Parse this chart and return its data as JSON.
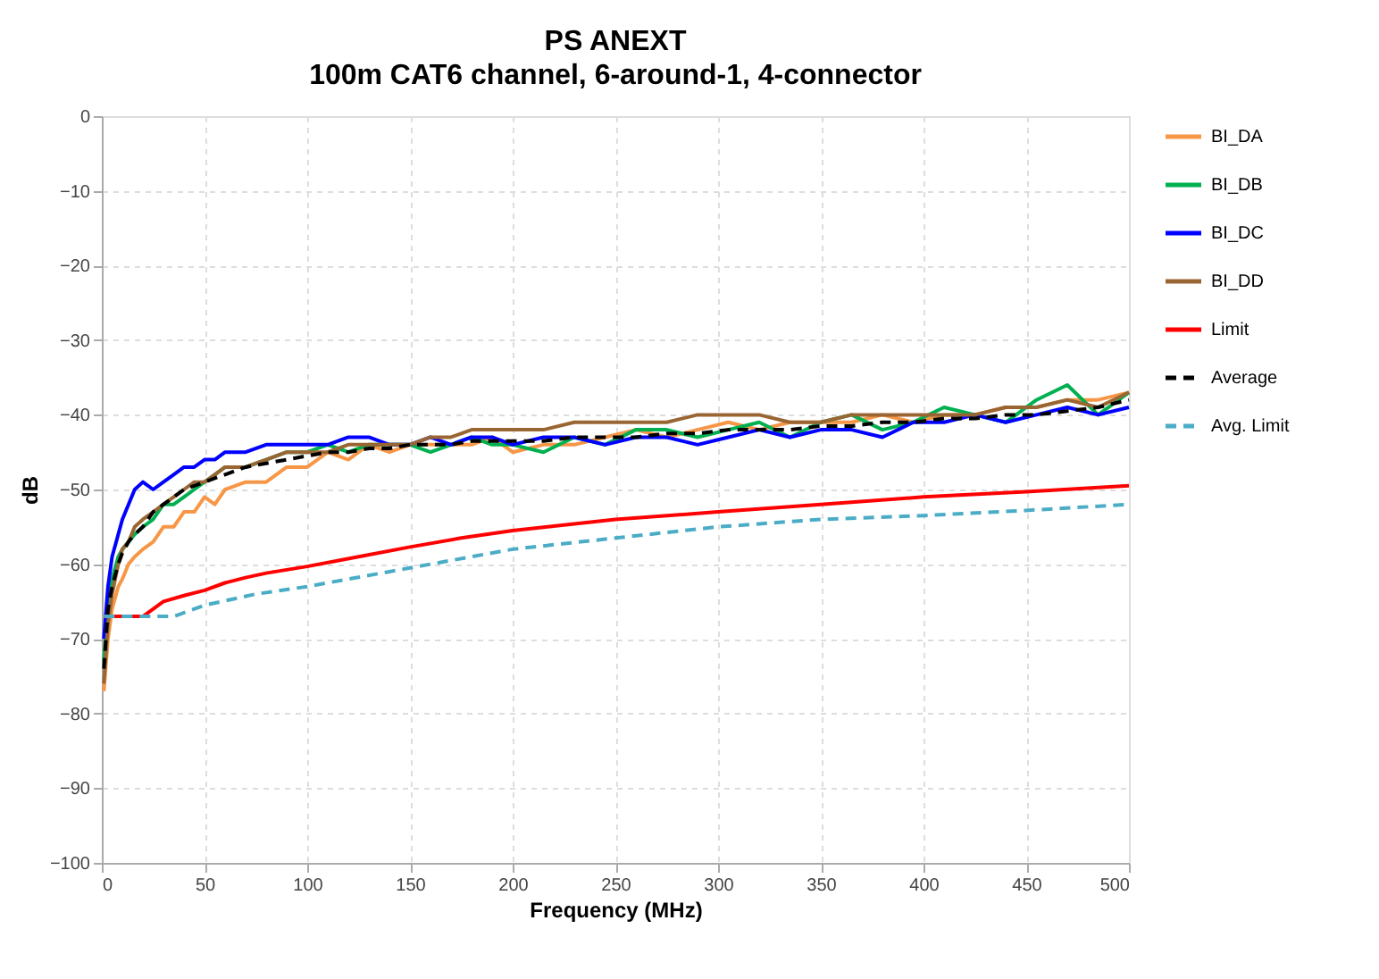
{
  "chart_data": {
    "type": "line",
    "title": "PS ANEXT",
    "subtitle": "100m CAT6 channel, 6-around-1, 4-connector",
    "xlabel": "Frequency (MHz)",
    "ylabel": "dB",
    "x": [
      1,
      3,
      5,
      8,
      10,
      13,
      16,
      20,
      25,
      30,
      35,
      40,
      45,
      50,
      55,
      60,
      70,
      80,
      90,
      100,
      110,
      120,
      130,
      140,
      150,
      160,
      170,
      180,
      190,
      200,
      215,
      230,
      245,
      260,
      275,
      290,
      305,
      320,
      335,
      350,
      365,
      380,
      395,
      410,
      425,
      440,
      455,
      470,
      485,
      500
    ],
    "series": [
      {
        "name": "BI_DA",
        "color": "#f79646",
        "line_style": "solid",
        "values": [
          -77,
          -70,
          -66,
          -63,
          -62,
          -60,
          -59,
          -58,
          -57,
          -55,
          -55,
          -53,
          -53,
          -51,
          -52,
          -50,
          -49,
          -49,
          -47,
          -47,
          -45,
          -46,
          -44,
          -45,
          -44,
          -44,
          -44,
          -44,
          -43,
          -45,
          -44,
          -44,
          -43,
          -42,
          -43,
          -42,
          -41,
          -42,
          -41,
          -41,
          -41,
          -40,
          -41,
          -40,
          -40,
          -39,
          -39,
          -38,
          -38,
          -37
        ]
      },
      {
        "name": "BI_DB",
        "color": "#00b050",
        "line_style": "solid",
        "values": [
          -73,
          -66,
          -62,
          -59,
          -58,
          -57,
          -56,
          -55,
          -54,
          -52,
          -52,
          -51,
          -50,
          -49,
          -48,
          -47,
          -47,
          -46,
          -45,
          -45,
          -44,
          -45,
          -44,
          -44,
          -44,
          -45,
          -44,
          -43,
          -44,
          -44,
          -45,
          -43,
          -44,
          -42,
          -42,
          -43,
          -42,
          -41,
          -43,
          -41,
          -40,
          -42,
          -41,
          -39,
          -40,
          -41,
          -38,
          -36,
          -40,
          -37
        ]
      },
      {
        "name": "BI_DC",
        "color": "#0000ff",
        "line_style": "solid",
        "values": [
          -70,
          -63,
          -59,
          -56,
          -54,
          -52,
          -50,
          -49,
          -50,
          -49,
          -48,
          -47,
          -47,
          -46,
          -46,
          -45,
          -45,
          -44,
          -44,
          -44,
          -44,
          -43,
          -43,
          -44,
          -44,
          -43,
          -44,
          -43,
          -43,
          -44,
          -43,
          -43,
          -44,
          -43,
          -43,
          -44,
          -43,
          -42,
          -43,
          -42,
          -42,
          -43,
          -41,
          -41,
          -40,
          -41,
          -40,
          -39,
          -40,
          -39
        ]
      },
      {
        "name": "BI_DD",
        "color": "#996633",
        "line_style": "solid",
        "values": [
          -76,
          -68,
          -64,
          -60,
          -58,
          -57,
          -55,
          -54,
          -53,
          -52,
          -51,
          -50,
          -49,
          -49,
          -48,
          -47,
          -47,
          -46,
          -45,
          -45,
          -45,
          -44,
          -44,
          -44,
          -44,
          -43,
          -43,
          -42,
          -42,
          -42,
          -42,
          -41,
          -41,
          -41,
          -41,
          -40,
          -40,
          -40,
          -41,
          -41,
          -40,
          -40,
          -40,
          -40,
          -40,
          -39,
          -39,
          -38,
          -39,
          -37
        ]
      },
      {
        "name": "Limit",
        "color": "#ff0000",
        "line_style": "solid",
        "x": [
          1,
          20,
          30,
          40,
          50,
          60,
          70,
          80,
          100,
          125,
          150,
          175,
          200,
          250,
          300,
          350,
          400,
          450,
          500
        ],
        "values": [
          -67,
          -67,
          -65,
          -64.2,
          -63.5,
          -62.5,
          -61.8,
          -61.2,
          -60.3,
          -59,
          -57.7,
          -56.5,
          -55.5,
          -54,
          -53,
          -52,
          -51,
          -50.3,
          -49.5
        ]
      },
      {
        "name": "Average",
        "color": "#000000",
        "line_style": "dashed",
        "values": [
          -74,
          -66,
          -63,
          -60,
          -58.5,
          -57,
          -56,
          -55,
          -53,
          -52,
          -51,
          -50,
          -49.5,
          -49,
          -48.5,
          -48,
          -47,
          -46.5,
          -46,
          -45.5,
          -45,
          -45,
          -44.5,
          -44.5,
          -44,
          -44,
          -44,
          -43.5,
          -43.5,
          -43.5,
          -43.5,
          -43,
          -43,
          -43,
          -42.5,
          -42.5,
          -42,
          -42,
          -42,
          -41.5,
          -41.5,
          -41,
          -41,
          -40.5,
          -40.5,
          -40,
          -40,
          -39.5,
          -39,
          -38
        ]
      },
      {
        "name": "Avg. Limit",
        "color": "#4bacc6",
        "line_style": "dashed",
        "x": [
          1,
          35,
          50,
          75,
          100,
          150,
          200,
          250,
          300,
          350,
          400,
          450,
          500
        ],
        "values": [
          -67,
          -67,
          -65.5,
          -64,
          -63,
          -60.5,
          -58,
          -56.5,
          -55,
          -54,
          -53.5,
          -52.8,
          -52
        ]
      }
    ],
    "xlim": [
      0,
      500
    ],
    "xticks": [
      0,
      50,
      100,
      150,
      200,
      250,
      300,
      350,
      400,
      450,
      500
    ],
    "ylim": [
      -100,
      0
    ],
    "yticks": [
      -100,
      -90,
      -80,
      -70,
      -60,
      -50,
      -40,
      -30,
      -20,
      -10,
      0
    ],
    "grid": true,
    "legend": "right",
    "marker": "none"
  }
}
